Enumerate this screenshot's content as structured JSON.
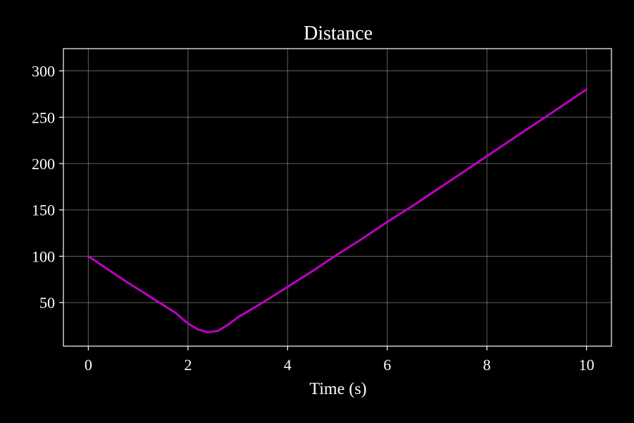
{
  "chart_data": {
    "type": "line",
    "title": "Distance",
    "xlabel": "Time (s)",
    "ylabel": "",
    "xlim": [
      -0.5,
      10.5
    ],
    "ylim": [
      3,
      324
    ],
    "xticks": [
      0,
      2,
      4,
      6,
      8,
      10
    ],
    "yticks": [
      50,
      100,
      150,
      200,
      250,
      300
    ],
    "grid": true,
    "colors": {
      "background": "#000000",
      "foreground": "#ffffff",
      "line": "#bf00bf"
    },
    "series": [
      {
        "x": [
          0,
          0.25,
          0.5,
          0.75,
          1.0,
          1.25,
          1.5,
          1.75,
          2.0,
          2.2,
          2.4,
          2.6,
          2.8,
          3.0,
          3.5,
          4.0,
          4.5,
          5.0,
          5.5,
          6.0,
          6.5,
          7.0,
          7.5,
          8.0,
          8.5,
          9.0,
          9.5,
          10.0
        ],
        "values": [
          100,
          91,
          82,
          73,
          64.5,
          56,
          47.5,
          39,
          27.5,
          21,
          18,
          19.5,
          26,
          34,
          50,
          67,
          84,
          102,
          119,
          137,
          154,
          172,
          190,
          208,
          226,
          244,
          262,
          280
        ]
      }
    ]
  }
}
